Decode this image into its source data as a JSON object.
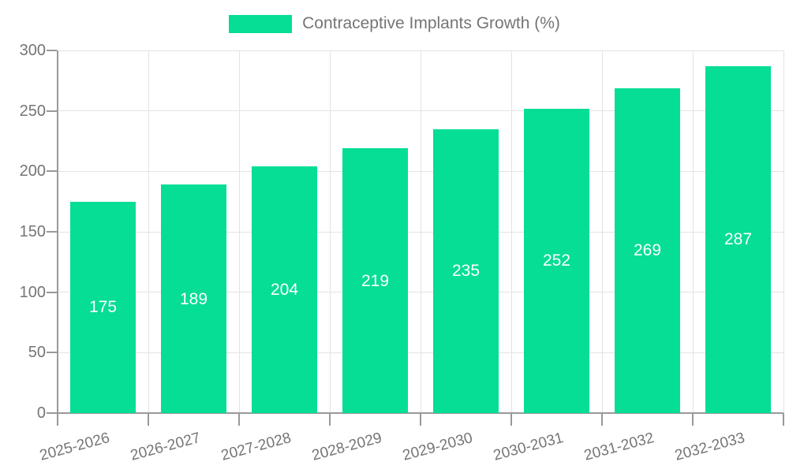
{
  "chart_data": {
    "type": "bar",
    "title": "Contraceptive Implants Growth (%)",
    "categories": [
      "2025-2026",
      "2026-2027",
      "2027-2028",
      "2028-2029",
      "2029-2030",
      "2030-2031",
      "2031-2032",
      "2032-2033"
    ],
    "values": [
      175,
      189,
      204,
      219,
      235,
      252,
      269,
      287
    ],
    "xlabel": "",
    "ylabel": "",
    "ylim": [
      0,
      300
    ],
    "yticks": [
      0,
      50,
      100,
      150,
      200,
      250,
      300
    ],
    "grid": true,
    "legend_position": "top-center",
    "x_label_rotation_deg": -15,
    "colors": {
      "bar": "#05DE94",
      "bar_value_label": "#FFFFFF",
      "axis_line": "#999999",
      "gridline": "#E3E3E3",
      "tick_text": "#757575",
      "legend_text": "#757575",
      "background": "#FFFFFF"
    }
  }
}
